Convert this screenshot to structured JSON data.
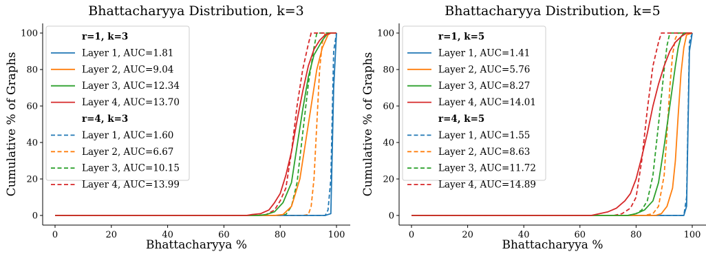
{
  "chart_data": [
    {
      "type": "line",
      "title": "Bhattacharyya Distribution, k=3",
      "xlabel": "Bhattacharyya %",
      "ylabel": "Cumulative % of Graphs",
      "xlim": [
        0,
        100
      ],
      "ylim": [
        0,
        100
      ],
      "xticks": [
        "0",
        "20",
        "40",
        "60",
        "80",
        "100"
      ],
      "yticks": [
        "0",
        "20",
        "40",
        "60",
        "80",
        "100"
      ],
      "grid": false,
      "legend_position": "upper-left",
      "groups": [
        {
          "heading": "r=1, k=3",
          "style": "solid",
          "series": [
            {
              "label": "Layer 1, AUC=1.81",
              "color": "#1f77b4",
              "points": [
                [
                  0,
                  0
                ],
                [
                  96,
                  0
                ],
                [
                  97,
                  0.5
                ],
                [
                  98,
                  1
                ],
                [
                  99,
                  70
                ],
                [
                  100,
                  100
                ]
              ]
            },
            {
              "label": "Layer 2, AUC=9.04",
              "color": "#ff7f0e",
              "points": [
                [
                  0,
                  0
                ],
                [
                  78,
                  0
                ],
                [
                  81,
                  0.5
                ],
                [
                  84,
                  5
                ],
                [
                  87,
                  20
                ],
                [
                  89,
                  40
                ],
                [
                  91,
                  60
                ],
                [
                  93,
                  80
                ],
                [
                  95,
                  92
                ],
                [
                  97,
                  99
                ],
                [
                  98,
                  100
                ],
                [
                  100,
                  100
                ]
              ]
            },
            {
              "label": "Layer 3, AUC=12.34",
              "color": "#2ca02c",
              "points": [
                [
                  0,
                  0
                ],
                [
                  72,
                  0
                ],
                [
                  75,
                  0.5
                ],
                [
                  78,
                  2
                ],
                [
                  81,
                  7
                ],
                [
                  84,
                  18
                ],
                [
                  86,
                  38
                ],
                [
                  88,
                  58
                ],
                [
                  90,
                  76
                ],
                [
                  92,
                  88
                ],
                [
                  95,
                  96
                ],
                [
                  97,
                  100
                ],
                [
                  100,
                  100
                ]
              ]
            },
            {
              "label": "Layer 4, AUC=13.70",
              "color": "#d62728",
              "points": [
                [
                  0,
                  0
                ],
                [
                  68,
                  0
                ],
                [
                  70,
                  0.5
                ],
                [
                  73,
                  1
                ],
                [
                  76,
                  3
                ],
                [
                  78,
                  7
                ],
                [
                  80,
                  12
                ],
                [
                  82,
                  22
                ],
                [
                  84,
                  35
                ],
                [
                  86,
                  52
                ],
                [
                  88,
                  68
                ],
                [
                  90,
                  82
                ],
                [
                  92,
                  91
                ],
                [
                  94,
                  96
                ],
                [
                  96,
                  99
                ],
                [
                  98,
                  100
                ],
                [
                  100,
                  100
                ]
              ]
            }
          ]
        },
        {
          "heading": "r=4, k=3",
          "style": "dashed",
          "series": [
            {
              "label": "Layer 1, AUC=1.60",
              "color": "#1f77b4",
              "points": [
                [
                  0,
                  0
                ],
                [
                  96,
                  0
                ],
                [
                  97,
                  3
                ],
                [
                  98,
                  20
                ],
                [
                  99,
                  90
                ],
                [
                  100,
                  100
                ]
              ]
            },
            {
              "label": "Layer 2, AUC=6.67",
              "color": "#ff7f0e",
              "points": [
                [
                  0,
                  0
                ],
                [
                  88,
                  0
                ],
                [
                  90,
                  0.5
                ],
                [
                  91,
                  5
                ],
                [
                  92,
                  20
                ],
                [
                  93,
                  50
                ],
                [
                  94,
                  80
                ],
                [
                  95,
                  95
                ],
                [
                  96,
                  100
                ],
                [
                  100,
                  100
                ]
              ]
            },
            {
              "label": "Layer 3, AUC=10.15",
              "color": "#2ca02c",
              "points": [
                [
                  0,
                  0
                ],
                [
                  79,
                  0
                ],
                [
                  82,
                  0.5
                ],
                [
                  84,
                  5
                ],
                [
                  86,
                  18
                ],
                [
                  88,
                  45
                ],
                [
                  90,
                  72
                ],
                [
                  92,
                  92
                ],
                [
                  93,
                  100
                ],
                [
                  100,
                  100
                ]
              ]
            },
            {
              "label": "Layer 4, AUC=13.99",
              "color": "#d62728",
              "points": [
                [
                  0,
                  0
                ],
                [
                  72,
                  0
                ],
                [
                  75,
                  0.5
                ],
                [
                  78,
                  3
                ],
                [
                  80,
                  8
                ],
                [
                  82,
                  15
                ],
                [
                  84,
                  35
                ],
                [
                  86,
                  60
                ],
                [
                  88,
                  80
                ],
                [
                  90,
                  94
                ],
                [
                  91,
                  100
                ],
                [
                  100,
                  100
                ]
              ]
            }
          ]
        }
      ]
    },
    {
      "type": "line",
      "title": "Bhattacharyya Distribution, k=5",
      "xlabel": "Bhattacharyya %",
      "ylabel": "Cumulative % of Graphs",
      "xlim": [
        0,
        100
      ],
      "ylim": [
        0,
        100
      ],
      "xticks": [
        "0",
        "20",
        "40",
        "60",
        "80",
        "100"
      ],
      "yticks": [
        "0",
        "20",
        "40",
        "60",
        "80",
        "100"
      ],
      "grid": false,
      "legend_position": "upper-left",
      "groups": [
        {
          "heading": "r=1, k=5",
          "style": "solid",
          "series": [
            {
              "label": "Layer 1, AUC=1.41",
              "color": "#1f77b4",
              "points": [
                [
                  0,
                  0
                ],
                [
                  97,
                  0
                ],
                [
                  98,
                  5
                ],
                [
                  99,
                  90
                ],
                [
                  100,
                  100
                ]
              ]
            },
            {
              "label": "Layer 2, AUC=5.76",
              "color": "#ff7f0e",
              "points": [
                [
                  0,
                  0
                ],
                [
                  87,
                  0
                ],
                [
                  89,
                  1
                ],
                [
                  91,
                  5
                ],
                [
                  93,
                  15
                ],
                [
                  94,
                  30
                ],
                [
                  95,
                  55
                ],
                [
                  96,
                  78
                ],
                [
                  97,
                  92
                ],
                [
                  98,
                  99
                ],
                [
                  100,
                  100
                ]
              ]
            },
            {
              "label": "Layer 3, AUC=8.27",
              "color": "#2ca02c",
              "points": [
                [
                  0,
                  0
                ],
                [
                  77,
                  0
                ],
                [
                  80,
                  1
                ],
                [
                  83,
                  3
                ],
                [
                  86,
                  8
                ],
                [
                  88,
                  18
                ],
                [
                  90,
                  38
                ],
                [
                  92,
                  60
                ],
                [
                  94,
                  82
                ],
                [
                  95,
                  92
                ],
                [
                  96,
                  98
                ],
                [
                  97,
                  100
                ],
                [
                  100,
                  100
                ]
              ]
            },
            {
              "label": "Layer 4, AUC=14.01",
              "color": "#d62728",
              "points": [
                [
                  0,
                  0
                ],
                [
                  64,
                  0
                ],
                [
                  67,
                  1
                ],
                [
                  70,
                  2
                ],
                [
                  73,
                  4
                ],
                [
                  76,
                  8
                ],
                [
                  78,
                  12
                ],
                [
                  80,
                  20
                ],
                [
                  82,
                  32
                ],
                [
                  84,
                  45
                ],
                [
                  86,
                  60
                ],
                [
                  88,
                  72
                ],
                [
                  90,
                  82
                ],
                [
                  92,
                  90
                ],
                [
                  94,
                  95
                ],
                [
                  96,
                  98
                ],
                [
                  98,
                  100
                ],
                [
                  100,
                  100
                ]
              ]
            }
          ]
        },
        {
          "heading": "r=4, k=5",
          "style": "dashed",
          "series": [
            {
              "label": "Layer 1, AUC=1.55",
              "color": "#1f77b4",
              "points": [
                [
                  0,
                  0
                ],
                [
                  97,
                  0
                ],
                [
                  98,
                  10
                ],
                [
                  99,
                  95
                ],
                [
                  100,
                  100
                ]
              ]
            },
            {
              "label": "Layer 2, AUC=8.63",
              "color": "#ff7f0e",
              "points": [
                [
                  0,
                  0
                ],
                [
                  83,
                  0
                ],
                [
                  86,
                  1
                ],
                [
                  88,
                  5
                ],
                [
                  90,
                  22
                ],
                [
                  91,
                  45
                ],
                [
                  92,
                  70
                ],
                [
                  93,
                  88
                ],
                [
                  94,
                  97
                ],
                [
                  95,
                  100
                ],
                [
                  100,
                  100
                ]
              ]
            },
            {
              "label": "Layer 3, AUC=11.72",
              "color": "#2ca02c",
              "points": [
                [
                  0,
                  0
                ],
                [
                  77,
                  0
                ],
                [
                  80,
                  1
                ],
                [
                  82,
                  3
                ],
                [
                  84,
                  8
                ],
                [
                  86,
                  22
                ],
                [
                  88,
                  50
                ],
                [
                  90,
                  80
                ],
                [
                  91,
                  93
                ],
                [
                  92,
                  100
                ],
                [
                  100,
                  100
                ]
              ]
            },
            {
              "label": "Layer 4, AUC=14.89",
              "color": "#d62728",
              "points": [
                [
                  0,
                  0
                ],
                [
                  72,
                  0
                ],
                [
                  75,
                  1
                ],
                [
                  78,
                  4
                ],
                [
                  80,
                  10
                ],
                [
                  82,
                  30
                ],
                [
                  84,
                  58
                ],
                [
                  86,
                  82
                ],
                [
                  88,
                  95
                ],
                [
                  89,
                  100
                ],
                [
                  100,
                  100
                ]
              ]
            }
          ]
        }
      ]
    }
  ]
}
